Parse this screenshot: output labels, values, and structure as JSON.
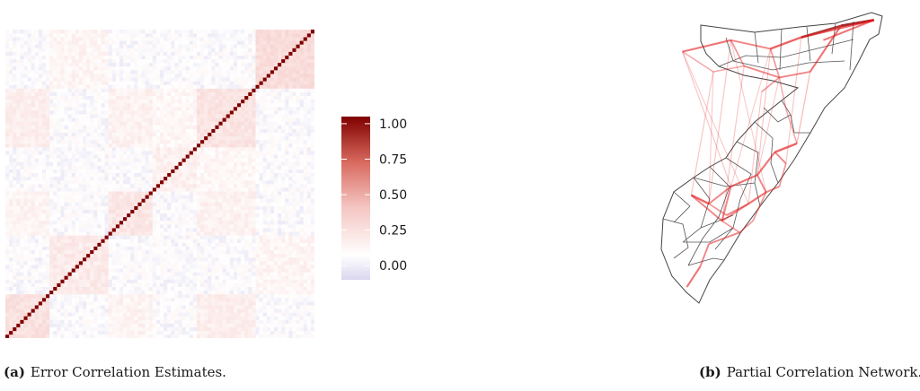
{
  "captions": {
    "a": {
      "tag": "(a)",
      "text": "Error Correlation Estimates."
    },
    "b": {
      "tag": "(b)",
      "text": "Partial Correlation Network."
    }
  },
  "colors": {
    "high": "#7f0000",
    "mid": "#f4c4c0",
    "zero": "#ffffff",
    "negative": "#d9d6ee",
    "edge": "#e31a1c",
    "border": "#444444"
  },
  "chart_data": [
    {
      "type": "heatmap",
      "title": "",
      "n": 84,
      "diagonal_value": 1.0,
      "value_range": [
        -0.1,
        1.0
      ],
      "blocks": [
        {
          "rows": [
            0,
            12
          ],
          "cols": [
            0,
            12
          ],
          "value": 0.18
        },
        {
          "rows": [
            12,
            28
          ],
          "cols": [
            12,
            28
          ],
          "value": 0.12
        },
        {
          "rows": [
            28,
            40
          ],
          "cols": [
            28,
            40
          ],
          "value": 0.14
        },
        {
          "rows": [
            40,
            52
          ],
          "cols": [
            40,
            52
          ],
          "value": 0.09
        },
        {
          "rows": [
            52,
            68
          ],
          "cols": [
            52,
            68
          ],
          "value": 0.16
        },
        {
          "rows": [
            68,
            84
          ],
          "cols": [
            68,
            84
          ],
          "value": 0.2
        }
      ],
      "off_diagonal_pairs": [
        {
          "rows": [
            0,
            12
          ],
          "cols": [
            52,
            68
          ],
          "value": 0.1
        },
        {
          "rows": [
            0,
            12
          ],
          "cols": [
            28,
            40
          ],
          "value": 0.07
        },
        {
          "rows": [
            28,
            40
          ],
          "cols": [
            52,
            68
          ],
          "value": 0.08
        },
        {
          "rows": [
            12,
            28
          ],
          "cols": [
            68,
            84
          ],
          "value": 0.06
        },
        {
          "rows": [
            40,
            52
          ],
          "cols": [
            52,
            68
          ],
          "value": 0.05
        }
      ],
      "legend": {
        "placement": "right",
        "ticks": [
          1.0,
          0.75,
          0.5,
          0.25,
          0.0
        ],
        "tick_labels": [
          "1.00",
          "0.75",
          "0.50",
          "0.25",
          "0.00"
        ]
      }
    },
    {
      "type": "network-map",
      "title": "",
      "nodes": [
        [
          0.08,
          0.13
        ],
        [
          0.3,
          0.09
        ],
        [
          0.48,
          0.12
        ],
        [
          0.62,
          0.08
        ],
        [
          0.8,
          0.04
        ],
        [
          0.95,
          0.02
        ],
        [
          0.72,
          0.09
        ],
        [
          0.36,
          0.18
        ],
        [
          0.52,
          0.22
        ],
        [
          0.66,
          0.2
        ],
        [
          0.22,
          0.2
        ],
        [
          0.44,
          0.27
        ],
        [
          0.55,
          0.33
        ],
        [
          0.6,
          0.45
        ],
        [
          0.55,
          0.52
        ],
        [
          0.5,
          0.48
        ],
        [
          0.42,
          0.56
        ],
        [
          0.3,
          0.6
        ],
        [
          0.2,
          0.66
        ],
        [
          0.12,
          0.63
        ],
        [
          0.26,
          0.72
        ],
        [
          0.38,
          0.66
        ],
        [
          0.46,
          0.62
        ],
        [
          0.52,
          0.6
        ],
        [
          0.34,
          0.76
        ],
        [
          0.2,
          0.8
        ],
        [
          0.16,
          0.88
        ],
        [
          0.1,
          0.95
        ],
        [
          0.28,
          0.7
        ],
        [
          0.4,
          0.72
        ]
      ],
      "edges": [
        [
          0,
          1,
          0.6
        ],
        [
          1,
          2,
          0.5
        ],
        [
          2,
          3,
          0.7
        ],
        [
          3,
          4,
          0.8
        ],
        [
          4,
          5,
          0.9
        ],
        [
          3,
          5,
          0.7
        ],
        [
          6,
          5,
          0.6
        ],
        [
          1,
          7,
          0.4
        ],
        [
          7,
          8,
          0.5
        ],
        [
          8,
          9,
          0.5
        ],
        [
          9,
          4,
          0.6
        ],
        [
          2,
          8,
          0.4
        ],
        [
          10,
          7,
          0.3
        ],
        [
          11,
          8,
          0.4
        ],
        [
          0,
          10,
          0.3
        ],
        [
          8,
          12,
          0.3
        ],
        [
          12,
          13,
          0.3
        ],
        [
          14,
          15,
          0.5
        ],
        [
          15,
          16,
          0.6
        ],
        [
          16,
          17,
          0.6
        ],
        [
          17,
          18,
          0.5
        ],
        [
          18,
          19,
          0.7
        ],
        [
          16,
          22,
          0.5
        ],
        [
          22,
          23,
          0.5
        ],
        [
          14,
          23,
          0.4
        ],
        [
          20,
          21,
          0.5
        ],
        [
          21,
          22,
          0.6
        ],
        [
          17,
          20,
          0.5
        ],
        [
          20,
          24,
          0.4
        ],
        [
          24,
          25,
          0.5
        ],
        [
          25,
          26,
          0.5
        ],
        [
          26,
          27,
          0.6
        ],
        [
          28,
          21,
          0.5
        ],
        [
          28,
          18,
          0.4
        ],
        [
          29,
          24,
          0.4
        ],
        [
          29,
          22,
          0.4
        ],
        [
          13,
          15,
          0.7
        ],
        [
          19,
          20,
          0.5
        ],
        [
          0,
          17,
          0.15
        ],
        [
          1,
          18,
          0.15
        ],
        [
          2,
          16,
          0.15
        ],
        [
          10,
          19,
          0.15
        ],
        [
          7,
          20,
          0.15
        ],
        [
          11,
          21,
          0.15
        ],
        [
          3,
          14,
          0.15
        ],
        [
          1,
          22,
          0.12
        ],
        [
          0,
          21,
          0.12
        ],
        [
          2,
          17,
          0.12
        ],
        [
          10,
          18,
          0.12
        ],
        [
          8,
          16,
          0.12
        ],
        [
          9,
          13,
          0.2
        ]
      ]
    }
  ]
}
